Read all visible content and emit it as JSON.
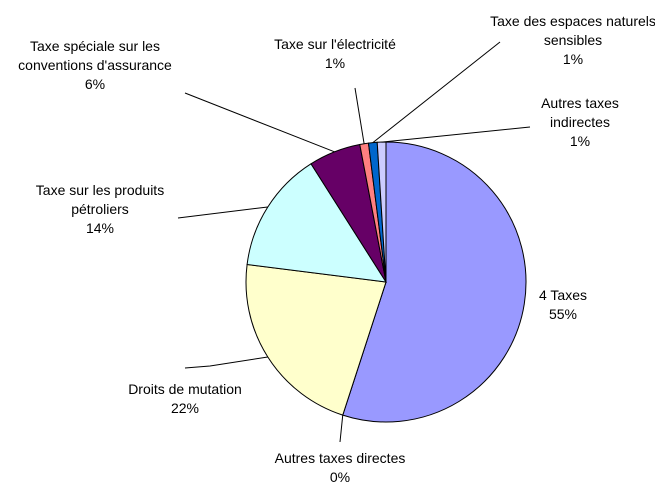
{
  "chart_data": {
    "type": "pie",
    "categories": [
      "4 Taxes",
      "Autres taxes directes",
      "Droits de mutation",
      "Taxe sur les produits pétroliers",
      "Taxe spéciale sur les conventions d'assurance",
      "Taxe sur l'électricité",
      "Taxe des espaces naturels sensibles",
      "Autres taxes indirectes"
    ],
    "values": [
      55,
      0,
      22,
      14,
      6,
      1,
      1,
      1
    ],
    "value_labels": [
      "55%",
      "0%",
      "22%",
      "14%",
      "6%",
      "1%",
      "1%",
      "1%"
    ],
    "colors": [
      "#9999ff",
      "#993366",
      "#ffffcc",
      "#ccffff",
      "#660066",
      "#ff8080",
      "#0066cc",
      "#ccccff"
    ]
  }
}
